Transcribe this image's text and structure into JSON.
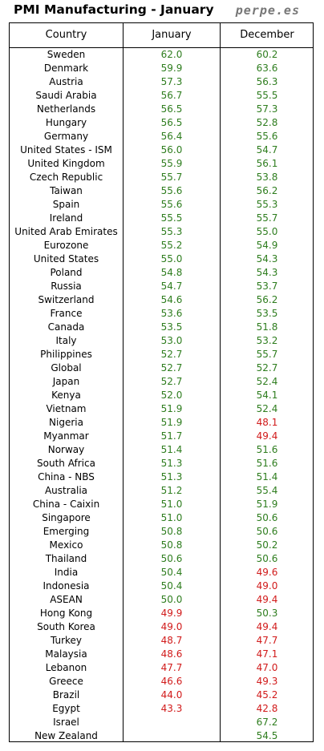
{
  "title": "PMI Manufacturing - January",
  "brand": "perpe.es",
  "columns": [
    "Country",
    "January",
    "December"
  ],
  "colors": {
    "above_50": "#2e7d1e",
    "below_50": "#d11a1a"
  },
  "rows": [
    {
      "country": "Sweden",
      "january": "62.0",
      "december": "60.2"
    },
    {
      "country": "Denmark",
      "january": "59.9",
      "december": "63.6"
    },
    {
      "country": "Austria",
      "january": "57.3",
      "december": "56.3"
    },
    {
      "country": "Saudi Arabia",
      "january": "56.7",
      "december": "55.5"
    },
    {
      "country": "Netherlands",
      "january": "56.5",
      "december": "57.3"
    },
    {
      "country": "Hungary",
      "january": "56.5",
      "december": "52.8"
    },
    {
      "country": "Germany",
      "january": "56.4",
      "december": "55.6"
    },
    {
      "country": "United States - ISM",
      "january": "56.0",
      "december": "54.7"
    },
    {
      "country": "United Kingdom",
      "january": "55.9",
      "december": "56.1"
    },
    {
      "country": "Czech Republic",
      "january": "55.7",
      "december": "53.8"
    },
    {
      "country": "Taiwan",
      "january": "55.6",
      "december": "56.2"
    },
    {
      "country": "Spain",
      "january": "55.6",
      "december": "55.3"
    },
    {
      "country": "Ireland",
      "january": "55.5",
      "december": "55.7"
    },
    {
      "country": "United Arab Emirates",
      "january": "55.3",
      "december": "55.0"
    },
    {
      "country": "Eurozone",
      "january": "55.2",
      "december": "54.9"
    },
    {
      "country": "United States",
      "january": "55.0",
      "december": "54.3"
    },
    {
      "country": "Poland",
      "january": "54.8",
      "december": "54.3"
    },
    {
      "country": "Russia",
      "january": "54.7",
      "december": "53.7"
    },
    {
      "country": "Switzerland",
      "january": "54.6",
      "december": "56.2"
    },
    {
      "country": "France",
      "january": "53.6",
      "december": "53.5"
    },
    {
      "country": "Canada",
      "january": "53.5",
      "december": "51.8"
    },
    {
      "country": "Italy",
      "january": "53.0",
      "december": "53.2"
    },
    {
      "country": "Philippines",
      "january": "52.7",
      "december": "55.7"
    },
    {
      "country": "Global",
      "january": "52.7",
      "december": "52.7"
    },
    {
      "country": "Japan",
      "january": "52.7",
      "december": "52.4"
    },
    {
      "country": "Kenya",
      "january": "52.0",
      "december": "54.1"
    },
    {
      "country": "Vietnam",
      "january": "51.9",
      "december": "52.4"
    },
    {
      "country": "Nigeria",
      "january": "51.9",
      "december": "48.1"
    },
    {
      "country": "Myanmar",
      "january": "51.7",
      "december": "49.4"
    },
    {
      "country": "Norway",
      "january": "51.4",
      "december": "51.6"
    },
    {
      "country": "South Africa",
      "january": "51.3",
      "december": "51.6"
    },
    {
      "country": "China - NBS",
      "january": "51.3",
      "december": "51.4"
    },
    {
      "country": "Australia",
      "january": "51.2",
      "december": "55.4"
    },
    {
      "country": "China - Caixin",
      "january": "51.0",
      "december": "51.9"
    },
    {
      "country": "Singapore",
      "january": "51.0",
      "december": "50.6"
    },
    {
      "country": "Emerging",
      "january": "50.8",
      "december": "50.6"
    },
    {
      "country": "Mexico",
      "january": "50.8",
      "december": "50.2"
    },
    {
      "country": "Thailand",
      "january": "50.6",
      "december": "50.6"
    },
    {
      "country": "India",
      "january": "50.4",
      "december": "49.6"
    },
    {
      "country": "Indonesia",
      "january": "50.4",
      "december": "49.0"
    },
    {
      "country": "ASEAN",
      "january": "50.0",
      "december": "49.4"
    },
    {
      "country": "Hong Kong",
      "january": "49.9",
      "december": "50.3"
    },
    {
      "country": "South Korea",
      "january": "49.0",
      "december": "49.4"
    },
    {
      "country": "Turkey",
      "january": "48.7",
      "december": "47.7"
    },
    {
      "country": "Malaysia",
      "january": "48.6",
      "december": "47.1"
    },
    {
      "country": "Lebanon",
      "january": "47.7",
      "december": "47.0"
    },
    {
      "country": "Greece",
      "january": "46.6",
      "december": "49.3"
    },
    {
      "country": "Brazil",
      "january": "44.0",
      "december": "45.2"
    },
    {
      "country": "Egypt",
      "january": "43.3",
      "december": "42.8"
    },
    {
      "country": "Israel",
      "january": "",
      "december": "67.2"
    },
    {
      "country": "New Zealand",
      "january": "",
      "december": "54.5"
    }
  ]
}
